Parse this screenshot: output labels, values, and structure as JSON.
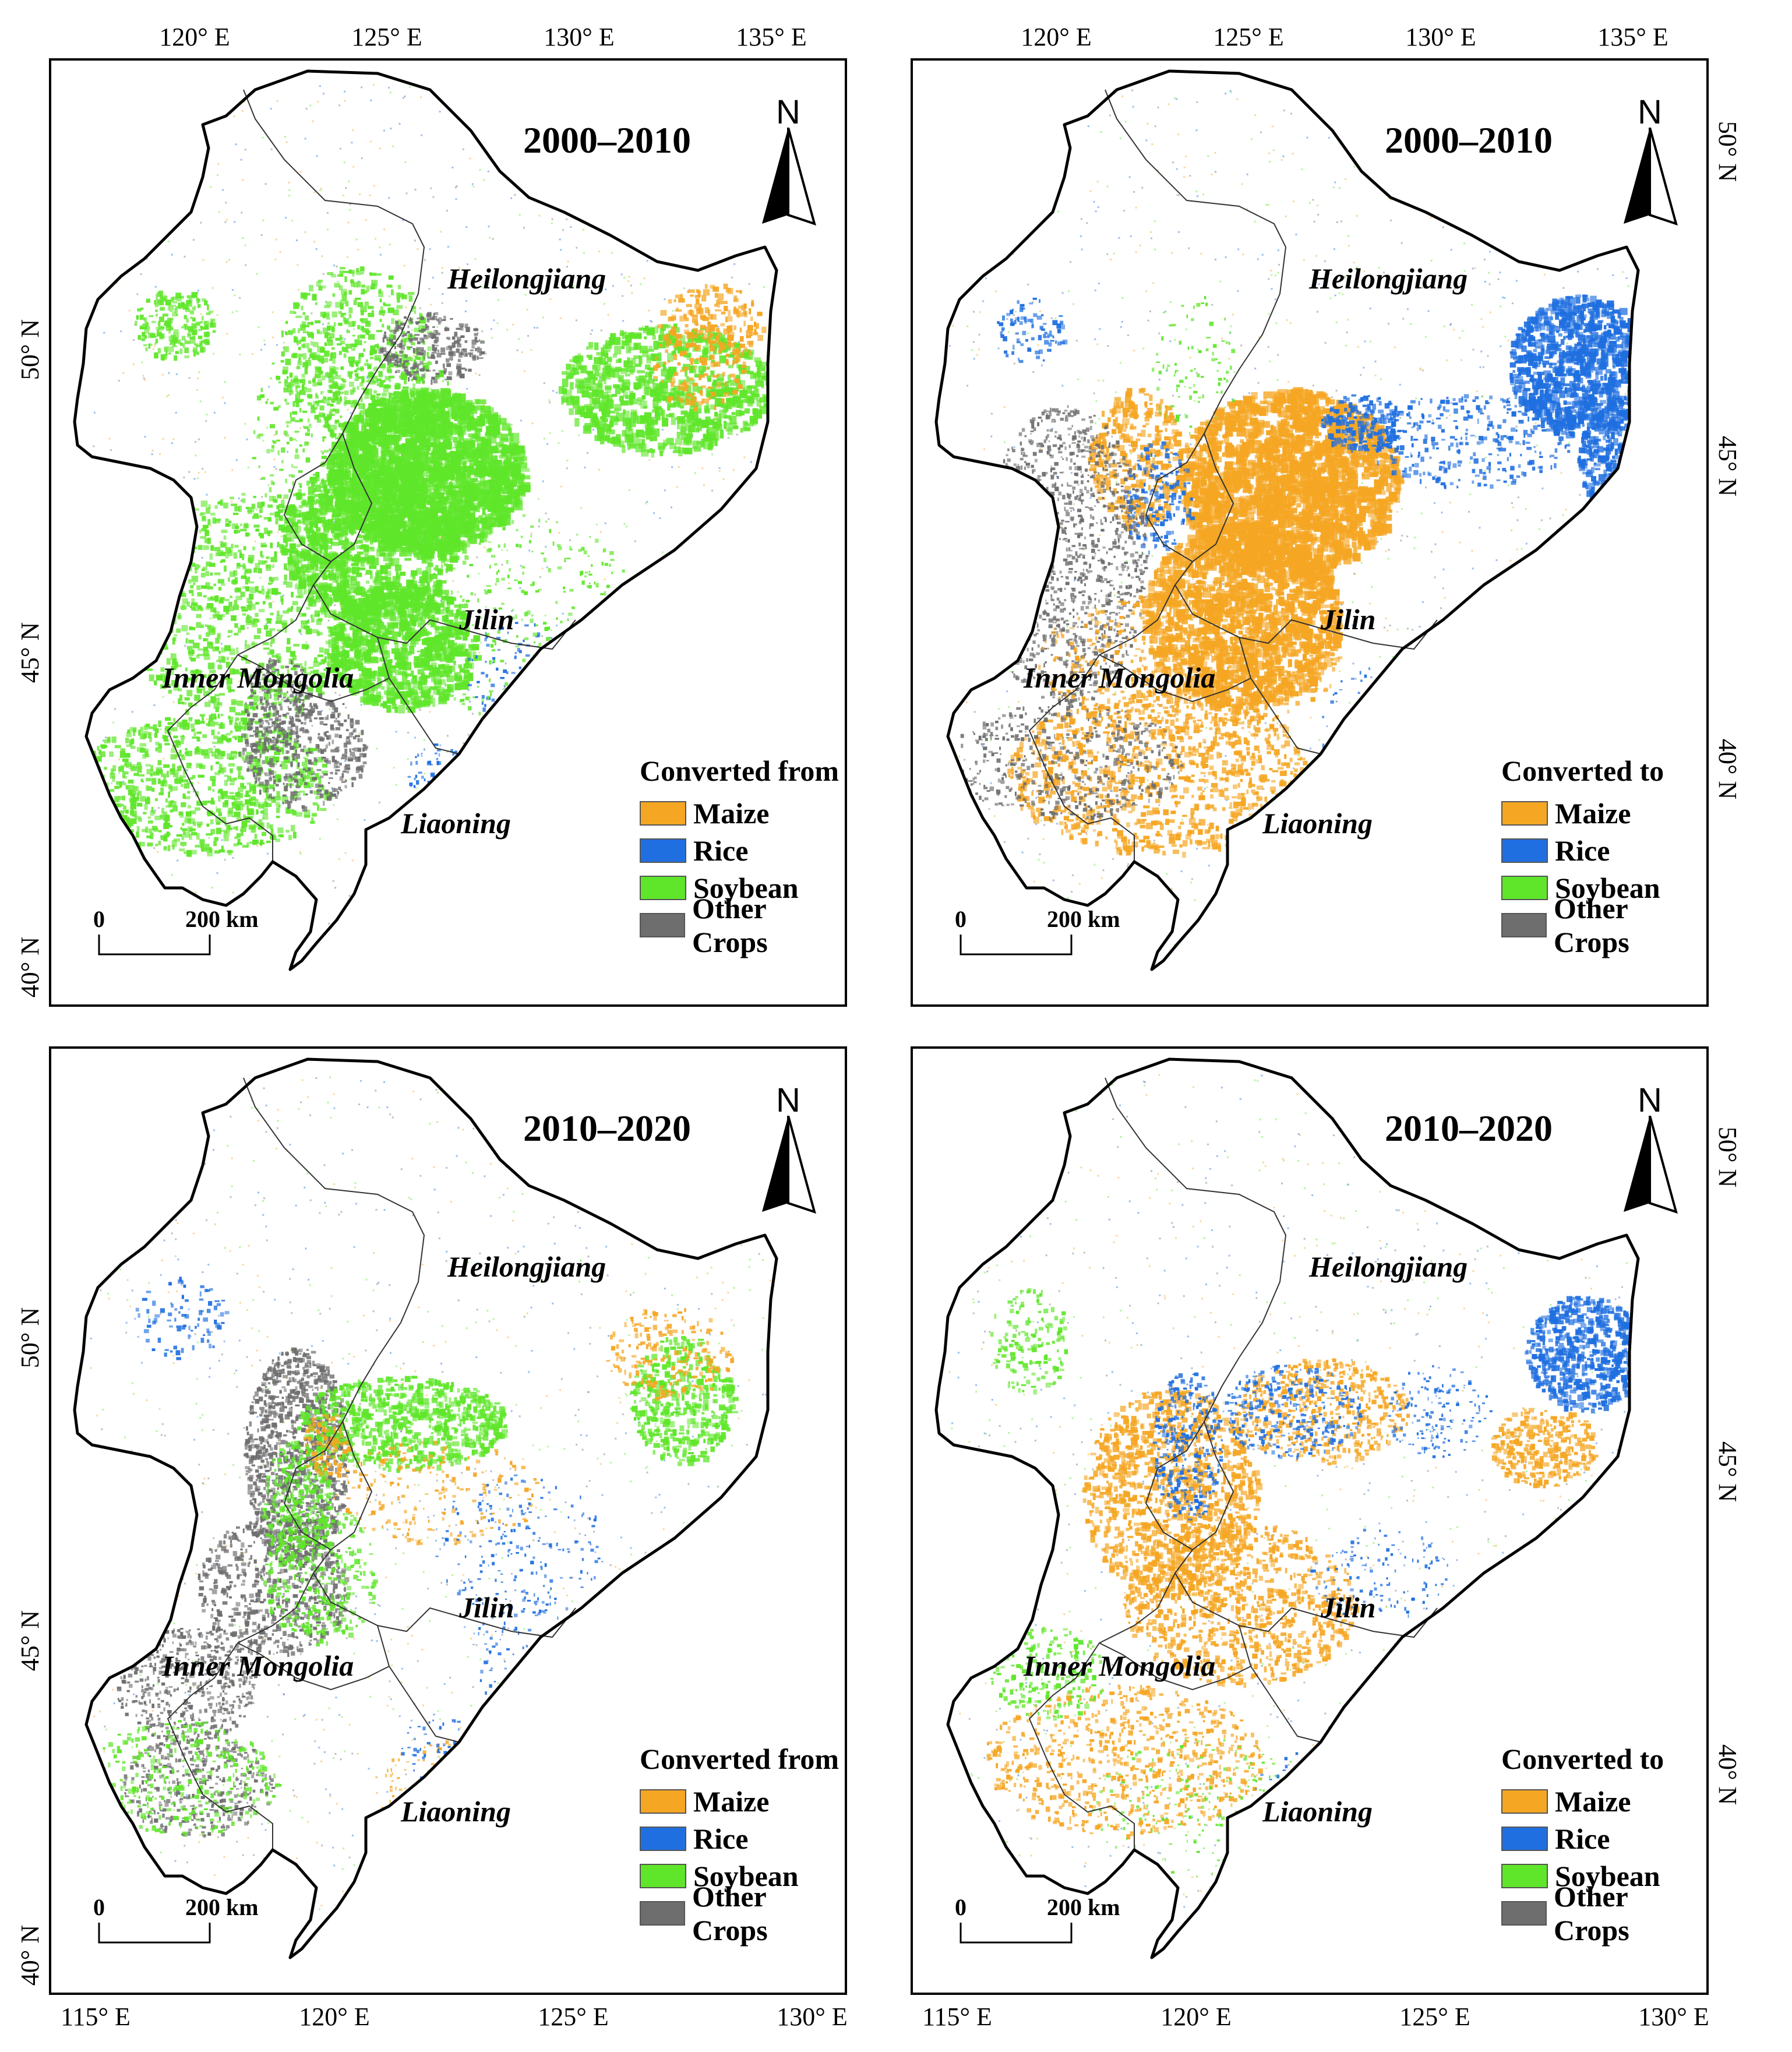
{
  "colors": {
    "maize": "#f5a623",
    "rice": "#1f6fe0",
    "soybean": "#5fe62a",
    "other": "#6e6e6e"
  },
  "panels": [
    {
      "id": "tl",
      "period": "2000–2010",
      "legend_title": "Converted from",
      "dominant": "soybean",
      "top_ticks": [
        "120° E",
        "125° E",
        "130° E",
        "135° E"
      ],
      "left_ticks": [
        "50° N",
        "45° N",
        "40° N"
      ],
      "right_ticks": [],
      "bottom_ticks": []
    },
    {
      "id": "tr",
      "period": "2000–2010",
      "legend_title": "Converted to",
      "dominant": "maize",
      "top_ticks": [
        "120° E",
        "125° E",
        "130° E",
        "135° E"
      ],
      "left_ticks": [],
      "right_ticks": [
        "50° N",
        "45° N",
        "40° N"
      ],
      "bottom_ticks": []
    },
    {
      "id": "bl",
      "period": "2010–2020",
      "legend_title": "Converted from",
      "dominant": "soybean-light",
      "top_ticks": [],
      "left_ticks": [
        "50° N",
        "45° N",
        "40° N"
      ],
      "right_ticks": [],
      "bottom_ticks": [
        "115° E",
        "120° E",
        "125° E",
        "130° E"
      ]
    },
    {
      "id": "br",
      "period": "2010–2020",
      "legend_title": "Converted to",
      "dominant": "maize-light",
      "top_ticks": [],
      "left_ticks": [],
      "right_ticks": [
        "50° N",
        "45° N",
        "40° N"
      ],
      "bottom_ticks": [
        "115° E",
        "120° E",
        "125° E",
        "130° E"
      ]
    }
  ],
  "legend_items": [
    {
      "key": "maize",
      "label": "Maize"
    },
    {
      "key": "rice",
      "label": "Rice"
    },
    {
      "key": "soybean",
      "label": "Soybean"
    },
    {
      "key": "other",
      "label": "Other Crops"
    }
  ],
  "provinces": {
    "heilongjiang": "Heilongjiang",
    "jilin": "Jilin",
    "inner_mongolia": "Inner Mongolia",
    "liaoning": "Liaoning"
  },
  "north_label": "N",
  "scale": {
    "zero": "0",
    "distance": "200 km"
  }
}
